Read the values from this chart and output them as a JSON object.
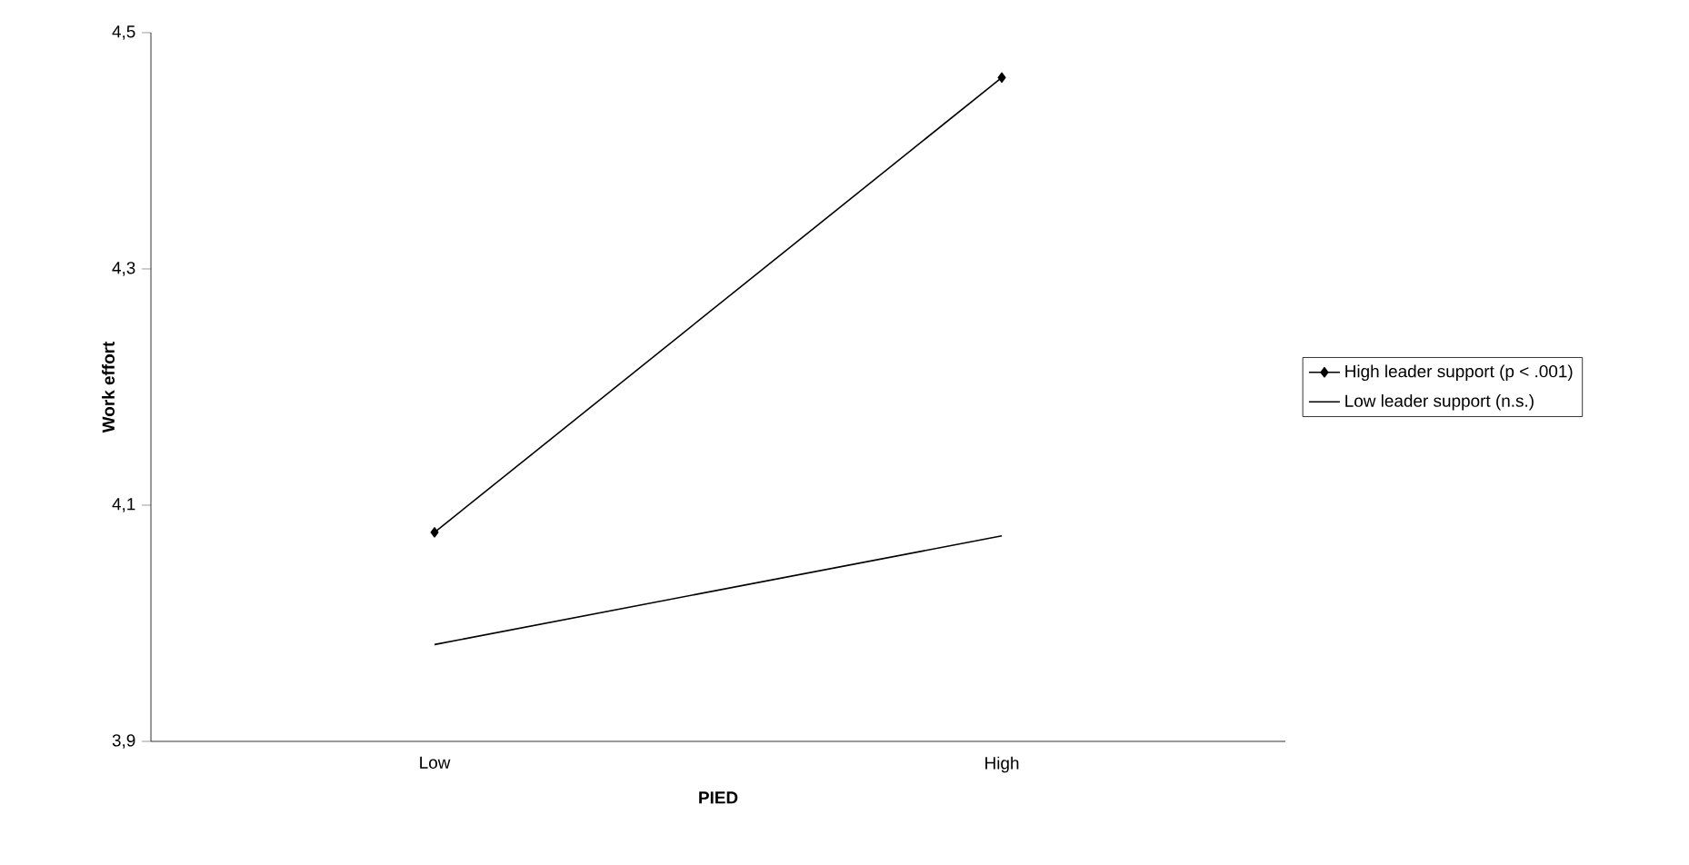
{
  "chart_data": {
    "type": "line",
    "xlabel": "PIED",
    "ylabel": "Work effort",
    "categories": [
      "Low",
      "High"
    ],
    "ylim": [
      3.9,
      4.5
    ],
    "yticks": [
      {
        "value": 3.9,
        "label": "3,9"
      },
      {
        "value": 4.1,
        "label": "4,1"
      },
      {
        "value": 4.3,
        "label": "4,3"
      },
      {
        "value": 4.5,
        "label": "4,5"
      }
    ],
    "series": [
      {
        "name": "High leader support (p < .001)",
        "color": "#000000",
        "marker": "diamond",
        "values": [
          4.077,
          4.462
        ]
      },
      {
        "name": "Low leader support (n.s.)",
        "color": "#000000",
        "marker": "none",
        "values": [
          3.982,
          4.074
        ]
      }
    ],
    "legend": "right",
    "grid": false
  }
}
